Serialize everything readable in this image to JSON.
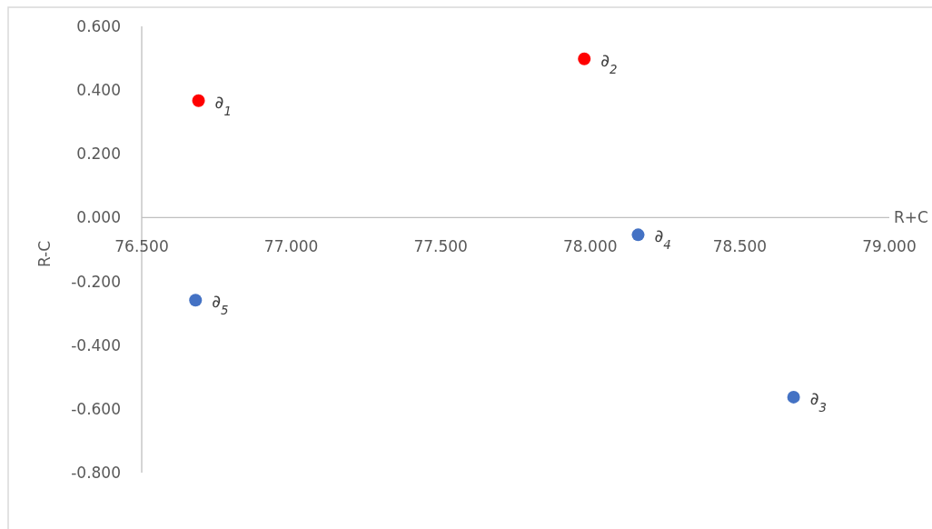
{
  "chart_data": {
    "type": "scatter",
    "xlabel": "R+C",
    "ylabel": "R-C",
    "marker": "circle",
    "series": [
      {
        "color": "#ff0000",
        "x": [
          76.69,
          77.98
        ],
        "values": [
          0.367,
          0.498
        ]
      },
      {
        "color": "#4472c4",
        "x": [
          78.68,
          78.16,
          76.68
        ],
        "values": [
          -0.563,
          -0.054,
          -0.259
        ]
      }
    ],
    "xlim": [
      76.5,
      79.0
    ],
    "ylim": [
      -0.8,
      0.6
    ],
    "xticks": [
      {
        "value": 76.5,
        "label": "76.500"
      },
      {
        "value": 77.0,
        "label": "77.000"
      },
      {
        "value": 77.5,
        "label": "77.500"
      },
      {
        "value": 78.0,
        "label": "78.000"
      },
      {
        "value": 78.5,
        "label": "78.500"
      },
      {
        "value": 79.0,
        "label": "79.000"
      }
    ],
    "yticks": [
      {
        "value": 0.6,
        "label": "0.600"
      },
      {
        "value": 0.4,
        "label": "0.400"
      },
      {
        "value": 0.2,
        "label": "0.200"
      },
      {
        "value": 0.0,
        "label": "0.000"
      },
      {
        "value": -0.2,
        "label": "-0.200"
      },
      {
        "value": -0.4,
        "label": "-0.400"
      },
      {
        "value": -0.6,
        "label": "-0.600"
      },
      {
        "value": -0.8,
        "label": "-0.800"
      }
    ],
    "annotations": [
      {
        "text": "∂$_{1}$",
        "x": 76.69,
        "y": 0.367
      },
      {
        "text": "∂$_{2}$",
        "x": 77.98,
        "y": 0.498
      },
      {
        "text": "∂$_{3}$",
        "x": 78.68,
        "y": -0.563
      },
      {
        "text": "∂$_{4}$",
        "x": 78.16,
        "y": -0.054
      },
      {
        "text": "∂$_{5}$",
        "x": 76.68,
        "y": -0.259
      }
    ]
  }
}
